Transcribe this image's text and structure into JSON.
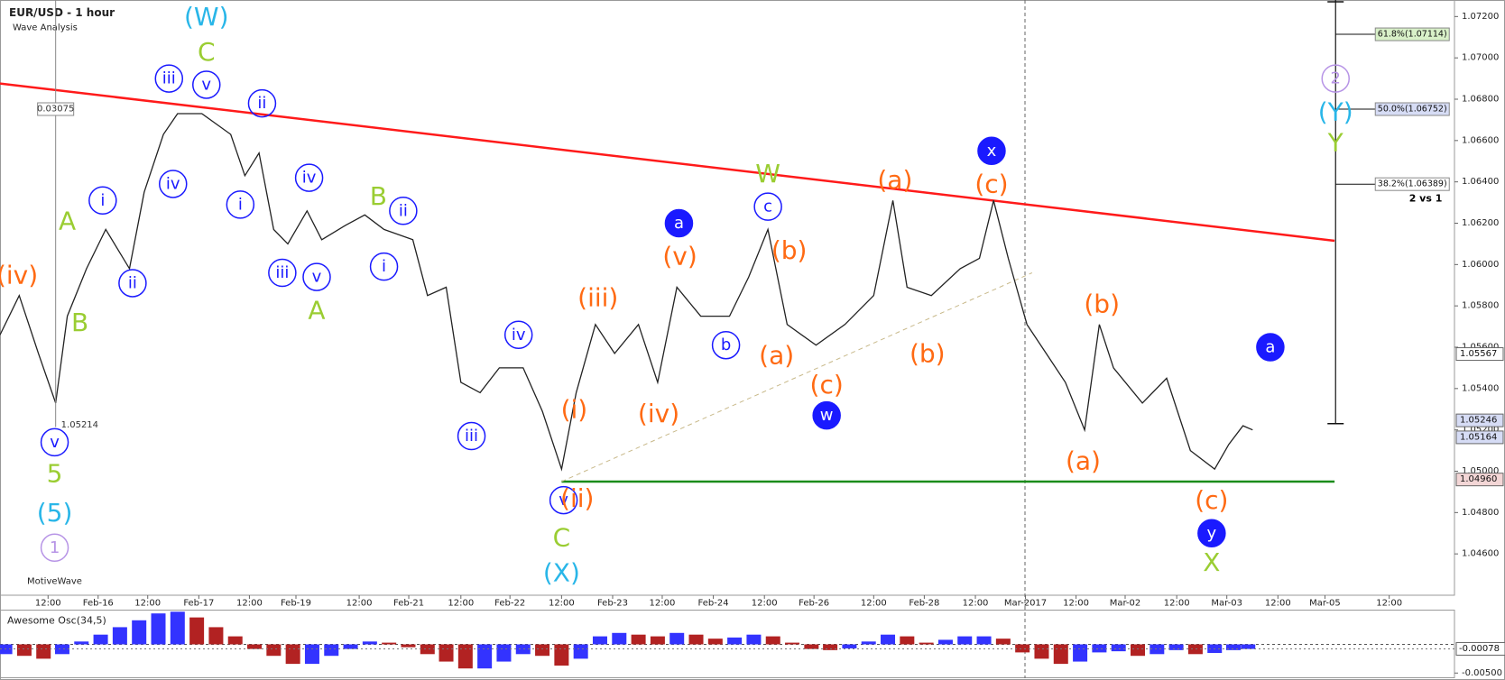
{
  "chart_data": [
    {
      "type": "line",
      "title": "EUR/USD - 1 hour",
      "subtitle": "Wave Analysis",
      "watermark": "MotiveWave",
      "color": "#222222",
      "x": [
        -0.95,
        -0.57,
        -0.19,
        0.15,
        0.38,
        0.76,
        1.14,
        1.61,
        1.9,
        2.28,
        2.56,
        3.04,
        3.61,
        3.89,
        4.17,
        4.46,
        4.74,
        5.12,
        5.41,
        5.88,
        6.26,
        6.64,
        7.21,
        7.5,
        7.87,
        8.16,
        8.54,
        8.92,
        9.39,
        9.77,
        10.15,
        10.44,
        10.82,
        11.2,
        11.67,
        12.05,
        12.43,
        12.9,
        13.47,
        13.85,
        14.23,
        14.61,
        15.18,
        15.75,
        16.32,
        16.7,
        16.98,
        17.46,
        18.03,
        18.41,
        18.69,
        18.98,
        19.35,
        19.73,
        20.11,
        20.49,
        20.78,
        21.06,
        21.63,
        22.11,
        22.58,
        23.06,
        23.34,
        23.62,
        23.81
      ],
      "values": [
        1.0566,
        1.0585,
        1.0557,
        1.0533,
        1.0575,
        1.0598,
        1.0617,
        1.0598,
        1.0635,
        1.0663,
        1.0673,
        1.0673,
        1.0663,
        1.0643,
        1.0654,
        1.0617,
        1.061,
        1.0626,
        1.0612,
        1.0619,
        1.0624,
        1.0617,
        1.0612,
        1.0585,
        1.0589,
        1.0543,
        1.0538,
        1.055,
        1.055,
        1.0529,
        1.0501,
        1.0538,
        1.0571,
        1.0557,
        1.0571,
        1.0543,
        1.0589,
        1.0575,
        1.0575,
        1.0594,
        1.0617,
        1.0571,
        1.0561,
        1.0571,
        1.0585,
        1.0631,
        1.0589,
        1.0585,
        1.0598,
        1.0603,
        1.0631,
        1.0603,
        1.0571,
        1.0557,
        1.0543,
        1.052,
        1.0571,
        1.055,
        1.0533,
        1.0545,
        1.051,
        1.0501,
        1.0513,
        1.0522,
        1.052
      ],
      "xlim": [
        -0.95,
        27.8
      ],
      "xticks": [
        {
          "value": 0,
          "label": "12:00"
        },
        {
          "value": 0.99,
          "label": "Feb-16"
        },
        {
          "value": 1.97,
          "label": "12:00"
        },
        {
          "value": 2.98,
          "label": "Feb-17"
        },
        {
          "value": 3.98,
          "label": "12:00"
        },
        {
          "value": 4.9,
          "label": "Feb-19"
        },
        {
          "value": 6.15,
          "label": "12:00"
        },
        {
          "value": 7.13,
          "label": "Feb-21"
        },
        {
          "value": 8.16,
          "label": "12:00"
        },
        {
          "value": 9.13,
          "label": "Feb-22"
        },
        {
          "value": 10.15,
          "label": "12:00"
        },
        {
          "value": 11.16,
          "label": "Feb-23"
        },
        {
          "value": 12.14,
          "label": "12:00"
        },
        {
          "value": 13.15,
          "label": "Feb-24"
        },
        {
          "value": 14.16,
          "label": "12:00"
        },
        {
          "value": 15.14,
          "label": "Feb-26"
        },
        {
          "value": 16.32,
          "label": "12:00"
        },
        {
          "value": 17.32,
          "label": "Feb-28"
        },
        {
          "value": 18.33,
          "label": "12:00"
        },
        {
          "value": 19.32,
          "label": "Mar-2017"
        },
        {
          "value": 20.32,
          "label": "12:00"
        },
        {
          "value": 21.29,
          "label": "Mar-02"
        },
        {
          "value": 22.31,
          "label": "12:00"
        },
        {
          "value": 23.3,
          "label": "Mar-03"
        },
        {
          "value": 24.31,
          "label": "12:00"
        },
        {
          "value": 25.24,
          "label": "Mar-05"
        },
        {
          "value": 26.51,
          "label": "12:00"
        }
      ],
      "ylim": [
        1.044,
        1.0728
      ],
      "yticks": [
        {
          "value": 1.046,
          "label": "1.04600"
        },
        {
          "value": 1.048,
          "label": "1.04800"
        },
        {
          "value": 1.05,
          "label": "1.05000"
        },
        {
          "value": 1.052,
          "label": "1.05200"
        },
        {
          "value": 1.054,
          "label": "1.05400"
        },
        {
          "value": 1.056,
          "label": "1.05600"
        },
        {
          "value": 1.058,
          "label": "1.05800"
        },
        {
          "value": 1.06,
          "label": "1.06000"
        },
        {
          "value": 1.062,
          "label": "1.06200"
        },
        {
          "value": 1.064,
          "label": "1.06400"
        },
        {
          "value": 1.066,
          "label": "1.06600"
        },
        {
          "value": 1.068,
          "label": "1.06800"
        },
        {
          "value": 1.07,
          "label": "1.07000"
        },
        {
          "value": 1.072,
          "label": "1.07200"
        }
      ],
      "lines": [
        {
          "color": "#ff1a1a",
          "x": [
            -0.95,
            25.43
          ],
          "y": [
            1.06876,
            1.06115
          ]
        },
        {
          "color": "#1a8c1a",
          "x": [
            10.15,
            25.43
          ],
          "y": [
            1.0495,
            1.0495
          ]
        },
        {
          "color": "#c8b98a",
          "dash": true,
          "x": [
            10.15,
            19.45
          ],
          "y": [
            1.0495,
            1.0596
          ]
        }
      ],
      "measure": {
        "x": 0.15,
        "low": 1.05214,
        "height": 0.03075
      },
      "fib": {
        "x": 25.45,
        "top": 1.0728,
        "bottom": 1.0523,
        "levels": [
          {
            "label": "61.8%(1.07114)",
            "value": 1.07114,
            "color": "#d8f0c8"
          },
          {
            "label": "50.0%(1.06752)",
            "value": 1.06752,
            "color": "#d6dcf5"
          },
          {
            "label": "38.2%(1.06389)",
            "value": 1.06389,
            "color": "#ffffff"
          }
        ]
      },
      "price_tags": [
        {
          "value": 1.05567,
          "color": "#ffffff"
        },
        {
          "value": 1.05246,
          "color": "#d6dcf5"
        },
        {
          "value": 1.05164,
          "color": "#d6dcf5"
        },
        {
          "value": 1.0496,
          "label": "1.04960",
          "color": "#f3d6d6"
        }
      ],
      "annotations": [
        {
          "text": "(iv)",
          "x": -0.61,
          "y": 1.0595,
          "color": "#ff6a13",
          "style": "plain"
        },
        {
          "text": "A",
          "x": 0.38,
          "y": 1.0621,
          "color": "#9acd32",
          "style": "plain"
        },
        {
          "text": "B",
          "x": 0.63,
          "y": 1.0572,
          "color": "#9acd32",
          "style": "plain"
        },
        {
          "text": "v",
          "x": 0.13,
          "y": 1.0514,
          "color": "#1a1aff",
          "style": "outline"
        },
        {
          "text": "5",
          "x": 0.13,
          "y": 1.0499,
          "color": "#9acd32",
          "style": "plain"
        },
        {
          "text": "(5)",
          "x": 0.13,
          "y": 1.048,
          "color": "#29b6e8",
          "style": "plain"
        },
        {
          "text": "1",
          "x": 0.13,
          "y": 1.0463,
          "color": "#b794e6",
          "style": "outline"
        },
        {
          "text": "(W)",
          "x": 3.13,
          "y": 1.072,
          "color": "#29b6e8",
          "style": "plain"
        },
        {
          "text": "C",
          "x": 3.13,
          "y": 1.0703,
          "color": "#9acd32",
          "style": "plain"
        },
        {
          "text": "iii",
          "x": 2.39,
          "y": 1.069,
          "color": "#1a1aff",
          "style": "outline"
        },
        {
          "text": "v",
          "x": 3.13,
          "y": 1.0687,
          "color": "#1a1aff",
          "style": "outline"
        },
        {
          "text": "ii",
          "x": 4.23,
          "y": 1.0678,
          "color": "#1a1aff",
          "style": "outline"
        },
        {
          "text": "i",
          "x": 1.08,
          "y": 1.0631,
          "color": "#1a1aff",
          "style": "outline"
        },
        {
          "text": "iv",
          "x": 2.47,
          "y": 1.0639,
          "color": "#1a1aff",
          "style": "outline"
        },
        {
          "text": "ii",
          "x": 1.67,
          "y": 1.0591,
          "color": "#1a1aff",
          "style": "outline"
        },
        {
          "text": "i",
          "x": 3.8,
          "y": 1.0629,
          "color": "#1a1aff",
          "style": "outline"
        },
        {
          "text": "iv",
          "x": 5.16,
          "y": 1.0642,
          "color": "#1a1aff",
          "style": "outline"
        },
        {
          "text": "iii",
          "x": 4.63,
          "y": 1.0596,
          "color": "#1a1aff",
          "style": "outline"
        },
        {
          "text": "v",
          "x": 5.31,
          "y": 1.0594,
          "color": "#1a1aff",
          "style": "outline"
        },
        {
          "text": "A",
          "x": 5.31,
          "y": 1.0578,
          "color": "#9acd32",
          "style": "plain"
        },
        {
          "text": "B",
          "x": 6.53,
          "y": 1.0633,
          "color": "#9acd32",
          "style": "plain"
        },
        {
          "text": "ii",
          "x": 7.02,
          "y": 1.0626,
          "color": "#1a1aff",
          "style": "outline"
        },
        {
          "text": "i",
          "x": 6.64,
          "y": 1.0599,
          "color": "#1a1aff",
          "style": "outline"
        },
        {
          "text": "iv",
          "x": 9.3,
          "y": 1.0566,
          "color": "#1a1aff",
          "style": "outline"
        },
        {
          "text": "iii",
          "x": 8.37,
          "y": 1.0517,
          "color": "#1a1aff",
          "style": "outline"
        },
        {
          "text": "v",
          "x": 10.19,
          "y": 1.0486,
          "color": "#1a1aff",
          "style": "outline"
        },
        {
          "text": "(ii)",
          "x": 10.46,
          "y": 1.0487,
          "color": "#ff6a13",
          "style": "plain"
        },
        {
          "text": "(i)",
          "x": 10.4,
          "y": 1.053,
          "color": "#ff6a13",
          "style": "plain"
        },
        {
          "text": "C",
          "x": 10.15,
          "y": 1.0468,
          "color": "#9acd32",
          "style": "plain"
        },
        {
          "text": "(X)",
          "x": 10.15,
          "y": 1.0451,
          "color": "#29b6e8",
          "style": "plain"
        },
        {
          "text": "(iii)",
          "x": 10.87,
          "y": 1.0584,
          "color": "#ff6a13",
          "style": "plain"
        },
        {
          "text": "(iv)",
          "x": 12.07,
          "y": 1.0528,
          "color": "#ff6a13",
          "style": "plain"
        },
        {
          "text": "(v)",
          "x": 12.49,
          "y": 1.0604,
          "color": "#ff6a13",
          "style": "plain"
        },
        {
          "text": "a",
          "x": 12.47,
          "y": 1.062,
          "color": "#1a1aff",
          "style": "filled"
        },
        {
          "text": "b",
          "x": 13.4,
          "y": 1.0561,
          "color": "#1a1aff",
          "style": "outline"
        },
        {
          "text": "c",
          "x": 14.23,
          "y": 1.0628,
          "color": "#1a1aff",
          "style": "outline"
        },
        {
          "text": "W",
          "x": 14.23,
          "y": 1.0644,
          "color": "#9acd32",
          "style": "plain"
        },
        {
          "text": "(b)",
          "x": 14.65,
          "y": 1.0607,
          "color": "#ff6a13",
          "style": "plain"
        },
        {
          "text": "(a)",
          "x": 14.4,
          "y": 1.0556,
          "color": "#ff6a13",
          "style": "plain"
        },
        {
          "text": "(c)",
          "x": 15.39,
          "y": 1.0542,
          "color": "#ff6a13",
          "style": "plain"
        },
        {
          "text": "w",
          "x": 15.39,
          "y": 1.0527,
          "color": "#1a1aff",
          "style": "filled"
        },
        {
          "text": "(a)",
          "x": 16.74,
          "y": 1.0641,
          "color": "#ff6a13",
          "style": "plain"
        },
        {
          "text": "(b)",
          "x": 17.38,
          "y": 1.0557,
          "color": "#ff6a13",
          "style": "plain"
        },
        {
          "text": "x",
          "x": 18.65,
          "y": 1.0655,
          "color": "#1a1aff",
          "style": "filled"
        },
        {
          "text": "(c)",
          "x": 18.65,
          "y": 1.0639,
          "color": "#ff6a13",
          "style": "plain"
        },
        {
          "text": "(b)",
          "x": 20.83,
          "y": 1.0581,
          "color": "#ff6a13",
          "style": "plain"
        },
        {
          "text": "(a)",
          "x": 20.46,
          "y": 1.0505,
          "color": "#ff6a13",
          "style": "plain"
        },
        {
          "text": "(c)",
          "x": 23.0,
          "y": 1.0486,
          "color": "#ff6a13",
          "style": "plain"
        },
        {
          "text": "y",
          "x": 23.0,
          "y": 1.047,
          "color": "#1a1aff",
          "style": "filled"
        },
        {
          "text": "X",
          "x": 23.0,
          "y": 1.0456,
          "color": "#9acd32",
          "style": "plain"
        },
        {
          "text": "a",
          "x": 24.16,
          "y": 1.056,
          "color": "#1a1aff",
          "style": "filled"
        },
        {
          "text": "2",
          "x": 25.45,
          "y": 1.069,
          "color": "#b794e6",
          "style": "outline"
        },
        {
          "text": "(Y)",
          "x": 25.45,
          "y": 1.0674,
          "color": "#29b6e8",
          "style": "plain"
        },
        {
          "text": "Y",
          "x": 25.45,
          "y": 1.0659,
          "color": "#9acd32",
          "style": "plain"
        },
        {
          "text": "2 vs 1",
          "x": 27.23,
          "y": 1.0632,
          "color": "#000000",
          "style": "note"
        }
      ]
    },
    {
      "type": "bar",
      "title": "Awesome Osc(34,5)",
      "up_color": "#3333ff",
      "down_color": "#b22222",
      "x": [
        -0.85,
        -0.47,
        -0.09,
        0.28,
        0.66,
        1.04,
        1.42,
        1.8,
        2.18,
        2.56,
        2.94,
        3.32,
        3.7,
        4.08,
        4.46,
        4.84,
        5.22,
        5.6,
        5.98,
        6.36,
        6.74,
        7.12,
        7.5,
        7.87,
        8.25,
        8.63,
        9.01,
        9.39,
        9.77,
        10.15,
        10.53,
        10.91,
        11.29,
        11.67,
        12.05,
        12.43,
        12.81,
        13.19,
        13.57,
        13.95,
        14.33,
        14.71,
        15.09,
        15.46,
        15.84,
        16.22,
        16.6,
        16.98,
        17.36,
        17.74,
        18.12,
        18.5,
        18.88,
        19.26,
        19.64,
        20.02,
        20.4,
        20.78,
        21.16,
        21.54,
        21.92,
        22.3,
        22.68,
        23.06,
        23.43,
        23.72
      ],
      "values": [
        -0.0017,
        -0.002,
        -0.0025,
        -0.0017,
        0.0005,
        0.0017,
        0.003,
        0.0042,
        0.0054,
        0.0057,
        0.0047,
        0.003,
        0.0014,
        -0.0008,
        -0.002,
        -0.0034,
        -0.0034,
        -0.002,
        -0.0008,
        0.0005,
        0.0003,
        -0.0005,
        -0.0017,
        -0.003,
        -0.0042,
        -0.0042,
        -0.003,
        -0.0017,
        -0.002,
        -0.0037,
        -0.0025,
        0.0014,
        0.002,
        0.0017,
        0.0014,
        0.002,
        0.0017,
        0.001,
        0.0012,
        0.0017,
        0.0014,
        0.0003,
        -0.0008,
        -0.001,
        -0.0007,
        0.0005,
        0.0017,
        0.0014,
        0.0003,
        0.0008,
        0.0014,
        0.0014,
        0.001,
        -0.0014,
        -0.0025,
        -0.0034,
        -0.003,
        -0.0014,
        -0.0012,
        -0.002,
        -0.0017,
        -0.001,
        -0.0017,
        -0.0015,
        -0.001,
        -0.0008
      ],
      "xlim": [
        -0.95,
        27.8
      ],
      "ylim": [
        -0.0059,
        0.0059
      ],
      "yticks": [
        {
          "value": -0.005,
          "label": "-0.00500"
        }
      ],
      "value_tag": -0.00078
    }
  ]
}
